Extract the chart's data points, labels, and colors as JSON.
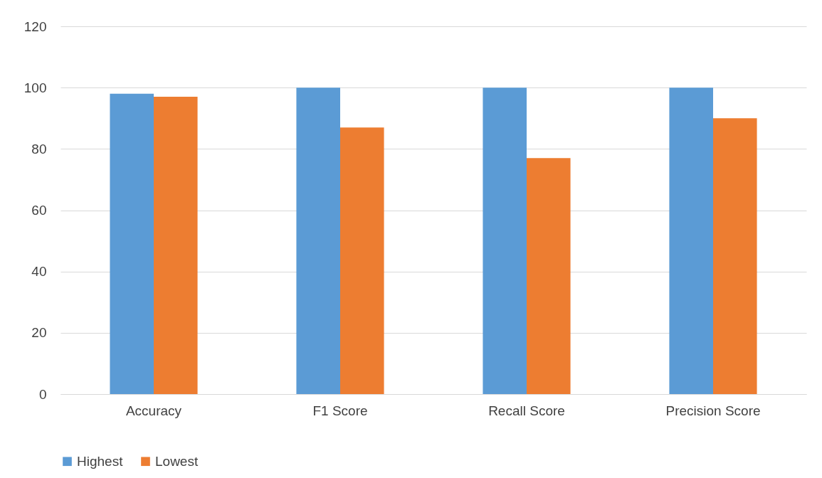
{
  "chart_data": {
    "type": "bar",
    "categories": [
      "Accuracy",
      "F1 Score",
      "Recall Score",
      "Precision Score"
    ],
    "series": [
      {
        "name": "Highest",
        "color": "#5b9bd5",
        "values": [
          98,
          100,
          100,
          100
        ]
      },
      {
        "name": "Lowest",
        "color": "#ed7d31",
        "values": [
          97,
          87,
          77,
          90
        ]
      }
    ],
    "ylim": [
      0,
      120
    ],
    "yticks": [
      0,
      20,
      40,
      60,
      80,
      100,
      120
    ],
    "grid": "y",
    "legend": "bottom"
  }
}
